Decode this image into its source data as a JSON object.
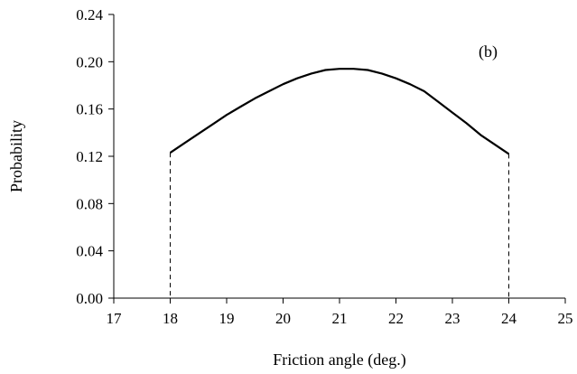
{
  "chart_data": {
    "type": "line",
    "xlabel": "Friction angle (deg.)",
    "ylabel": "Probability",
    "xlim": [
      17,
      25
    ],
    "ylim": [
      0,
      0.24
    ],
    "x_ticks": [
      17,
      18,
      19,
      20,
      21,
      22,
      23,
      24,
      25
    ],
    "y_ticks": [
      0.0,
      0.04,
      0.08,
      0.12,
      0.16,
      0.2,
      0.24
    ],
    "x_tick_labels": [
      "17",
      "18",
      "19",
      "20",
      "21",
      "22",
      "23",
      "24",
      "25"
    ],
    "y_tick_labels": [
      "0.00",
      "0.04",
      "0.08",
      "0.12",
      "0.16",
      "0.20",
      "0.24"
    ],
    "annotation": "(b)",
    "grid": false,
    "legend": "none",
    "series": [
      {
        "x": [
          18,
          18.25,
          18.5,
          18.75,
          19,
          19.25,
          19.5,
          19.75,
          20,
          20.25,
          20.5,
          20.75,
          21,
          21.25,
          21.5,
          21.75,
          22,
          22.25,
          22.5,
          22.75,
          23,
          23.25,
          23.5,
          23.75,
          24
        ],
        "y": [
          0.123,
          0.131,
          0.139,
          0.147,
          0.155,
          0.162,
          0.169,
          0.175,
          0.181,
          0.186,
          0.19,
          0.193,
          0.194,
          0.194,
          0.193,
          0.19,
          0.186,
          0.181,
          0.175,
          0.166,
          0.157,
          0.148,
          0.138,
          0.13,
          0.122
        ],
        "color": "#000000"
      }
    ],
    "bounds": {
      "x": [
        18,
        24
      ],
      "style": "dashed"
    }
  }
}
